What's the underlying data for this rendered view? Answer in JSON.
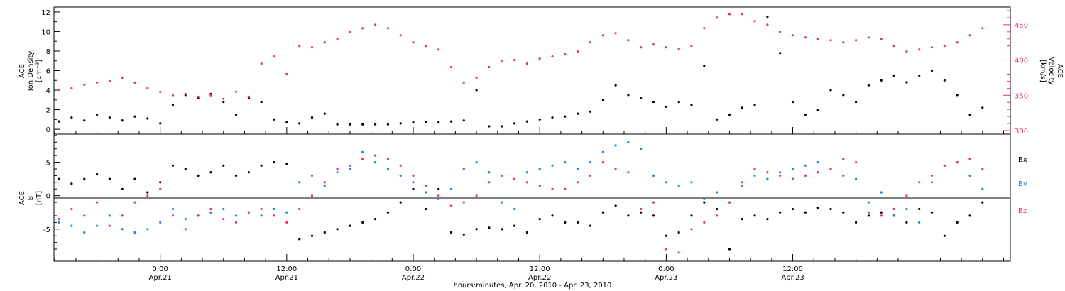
{
  "colors": {
    "black": "#000000",
    "red": "#e8336a",
    "blue": "#1f86d6"
  },
  "chart_data": [
    {
      "type": "scatter",
      "panel": "top",
      "ylabel_lines": [
        "ACE",
        "Ion Density",
        "[cm⁻³]"
      ],
      "y2label_lines": [
        "ACE",
        "Velocity",
        "[km/s]"
      ],
      "xlim": [
        -0.42,
        3.36
      ],
      "ylim": [
        -0.5,
        12.5
      ],
      "y2lim": [
        295,
        475
      ],
      "yticks": [
        "0",
        "2",
        "4",
        "6",
        "8",
        "10",
        "12"
      ],
      "y2ticks": [
        "300",
        "350",
        "400",
        "450"
      ],
      "series": [
        {
          "color": "#000000",
          "x": [
            -0.4,
            -0.35,
            -0.3,
            -0.25,
            -0.2,
            -0.15,
            -0.1,
            -0.05,
            0.0,
            0.05,
            0.1,
            0.15,
            0.2,
            0.25,
            0.3,
            0.35,
            0.4,
            0.45,
            0.5,
            0.55,
            0.6,
            0.65,
            0.7,
            0.75,
            0.8,
            0.85,
            0.9,
            0.95,
            1.0,
            1.05,
            1.1,
            1.15,
            1.2,
            1.25,
            1.3,
            1.35,
            1.4,
            1.45,
            1.5,
            1.55,
            1.6,
            1.65,
            1.7,
            1.75,
            1.8,
            1.85,
            1.9,
            1.95,
            2.0,
            2.05,
            2.1,
            2.15,
            2.2,
            2.25,
            2.3,
            2.35,
            2.4,
            2.45,
            2.5,
            2.55,
            2.6,
            2.65,
            2.7,
            2.75,
            2.8,
            2.85,
            2.9,
            2.95,
            3.0,
            3.05,
            3.1,
            3.15,
            3.2,
            3.25
          ],
          "values": [
            0.8,
            1.2,
            0.9,
            1.5,
            1.2,
            0.9,
            1.3,
            1.1,
            0.6,
            2.5,
            3.5,
            3.2,
            3.6,
            2.8,
            1.5,
            3.2,
            2.8,
            1.0,
            0.7,
            0.6,
            1.2,
            1.6,
            0.5,
            0.5,
            0.5,
            0.5,
            0.5,
            0.6,
            0.7,
            0.7,
            0.7,
            0.8,
            0.9,
            4.0,
            0.3,
            0.3,
            0.6,
            0.8,
            1.0,
            1.2,
            1.3,
            1.6,
            1.8,
            3.0,
            4.5,
            3.5,
            3.2,
            2.8,
            2.3,
            2.8,
            2.5,
            6.5,
            1.0,
            1.5,
            2.2,
            2.5,
            11.5,
            7.8,
            2.8,
            1.5,
            2.0,
            4.0,
            3.5,
            2.8,
            4.5,
            5.0,
            5.5,
            4.8,
            5.5,
            6.0,
            5.0,
            3.5,
            1.5,
            2.2
          ]
        },
        {
          "color": "#e8336a",
          "axis": "y2",
          "x": [
            -0.4,
            -0.35,
            -0.3,
            -0.25,
            -0.2,
            -0.15,
            -0.1,
            -0.05,
            0.0,
            0.05,
            0.1,
            0.15,
            0.2,
            0.25,
            0.3,
            0.35,
            0.4,
            0.45,
            0.5,
            0.55,
            0.6,
            0.65,
            0.7,
            0.75,
            0.8,
            0.85,
            0.9,
            0.95,
            1.0,
            1.05,
            1.1,
            1.15,
            1.2,
            1.25,
            1.3,
            1.35,
            1.4,
            1.45,
            1.5,
            1.55,
            1.6,
            1.65,
            1.7,
            1.75,
            1.8,
            1.85,
            1.9,
            1.95,
            2.0,
            2.05,
            2.1,
            2.15,
            2.2,
            2.25,
            2.3,
            2.35,
            2.4,
            2.45,
            2.5,
            2.55,
            2.6,
            2.65,
            2.7,
            2.75,
            2.8,
            2.85,
            2.9,
            2.95,
            3.0,
            3.05,
            3.1,
            3.15,
            3.2,
            3.25
          ],
          "values": [
            358,
            360,
            365,
            368,
            370,
            375,
            368,
            360,
            355,
            350,
            352,
            348,
            350,
            345,
            355,
            348,
            395,
            405,
            380,
            420,
            418,
            425,
            430,
            440,
            445,
            450,
            445,
            435,
            425,
            420,
            415,
            390,
            368,
            375,
            390,
            398,
            400,
            395,
            402,
            405,
            408,
            412,
            425,
            435,
            438,
            428,
            418,
            422,
            418,
            416,
            420,
            445,
            460,
            465,
            465,
            455,
            450,
            440,
            435,
            432,
            430,
            428,
            425,
            428,
            432,
            430,
            420,
            412,
            415,
            418,
            420,
            425,
            435,
            445
          ]
        }
      ]
    },
    {
      "type": "scatter",
      "panel": "bottom",
      "ylabel_lines": [
        "ACE",
        "B",
        "[nT]"
      ],
      "xlim": [
        -0.42,
        3.36
      ],
      "ylim": [
        -9.8,
        9.2
      ],
      "yticks": [
        "-5",
        "0",
        "5"
      ],
      "legend": [
        "Bx",
        "By",
        "Bz"
      ],
      "xticks": [
        {
          "x": 0.0,
          "line1": "0:00",
          "line2": "Apr.21"
        },
        {
          "x": 0.5,
          "line1": "12:00",
          "line2": "Apr.21"
        },
        {
          "x": 1.0,
          "line1": "0:00",
          "line2": "Apr.22"
        },
        {
          "x": 1.5,
          "line1": "12:00",
          "line2": "Apr.22"
        },
        {
          "x": 2.0,
          "line1": "0:00",
          "line2": "Apr.23"
        },
        {
          "x": 2.5,
          "line1": "12:00",
          "line2": "Apr.23"
        }
      ],
      "xlabel": "hours:minutes, Apr. 20, 2010 - Apr. 23, 2010",
      "series": [
        {
          "name": "Bx",
          "color": "#000000",
          "x": [
            -0.4,
            -0.35,
            -0.3,
            -0.25,
            -0.2,
            -0.15,
            -0.1,
            -0.05,
            0.0,
            0.05,
            0.1,
            0.15,
            0.2,
            0.25,
            0.3,
            0.35,
            0.4,
            0.45,
            0.5,
            0.55,
            0.6,
            0.65,
            0.7,
            0.75,
            0.8,
            0.85,
            0.9,
            0.95,
            1.0,
            1.05,
            1.1,
            1.15,
            1.2,
            1.25,
            1.3,
            1.35,
            1.4,
            1.45,
            1.5,
            1.55,
            1.6,
            1.65,
            1.7,
            1.75,
            1.8,
            1.85,
            1.9,
            1.95,
            2.0,
            2.05,
            2.1,
            2.15,
            2.2,
            2.25,
            2.3,
            2.35,
            2.4,
            2.45,
            2.5,
            2.55,
            2.6,
            2.65,
            2.7,
            2.75,
            2.8,
            2.85,
            2.9,
            2.95,
            3.0,
            3.05,
            3.1,
            3.15,
            3.2,
            3.25
          ],
          "values": [
            2.5,
            1.8,
            2.5,
            3.2,
            2.5,
            1.0,
            2.5,
            0.5,
            2.0,
            4.5,
            4.0,
            3.0,
            3.5,
            4.5,
            3.0,
            3.5,
            4.5,
            5.0,
            4.8,
            -6.5,
            -6.0,
            -5.5,
            -5.0,
            -4.5,
            -4.0,
            -3.5,
            -2.5,
            -1.0,
            1.0,
            -2.0,
            1.0,
            -5.5,
            -5.8,
            -5.0,
            -4.8,
            -5.0,
            -4.5,
            -5.5,
            -3.5,
            -3.0,
            -4.0,
            -4.0,
            -4.5,
            -2.5,
            -1.5,
            -3.0,
            -2.5,
            -3.0,
            -6.0,
            -5.5,
            -3.0,
            -1.0,
            -2.0,
            -8.0,
            -3.5,
            -3.0,
            -3.5,
            -2.5,
            -2.0,
            -2.5,
            -1.8,
            -2.0,
            -2.5,
            -4.0,
            -3.0,
            -2.5,
            -3.0,
            -4.0,
            -2.0,
            -2.5,
            -6.0,
            -4.0,
            -3.0,
            -1.0
          ]
        },
        {
          "name": "By",
          "color": "#1f86d6",
          "x": [
            -0.4,
            -0.35,
            -0.3,
            -0.25,
            -0.2,
            -0.15,
            -0.1,
            -0.05,
            0.0,
            0.05,
            0.1,
            0.15,
            0.2,
            0.25,
            0.3,
            0.35,
            0.4,
            0.45,
            0.5,
            0.55,
            0.6,
            0.65,
            0.7,
            0.75,
            0.8,
            0.85,
            0.9,
            0.95,
            1.0,
            1.05,
            1.1,
            1.15,
            1.2,
            1.25,
            1.3,
            1.35,
            1.4,
            1.45,
            1.5,
            1.55,
            1.6,
            1.65,
            1.7,
            1.75,
            1.8,
            1.85,
            1.9,
            1.95,
            2.0,
            2.05,
            2.1,
            2.15,
            2.2,
            2.25,
            2.3,
            2.35,
            2.4,
            2.45,
            2.5,
            2.55,
            2.6,
            2.65,
            2.7,
            2.75,
            2.8,
            2.85,
            2.9,
            2.95,
            3.0,
            3.05,
            3.1,
            3.15,
            3.2,
            3.25
          ],
          "values": [
            -4.0,
            -4.5,
            -5.5,
            -4.5,
            -3.0,
            -5.0,
            -5.5,
            -5.0,
            -4.0,
            -2.0,
            -3.5,
            -3.0,
            -2.5,
            -2.0,
            -3.0,
            -2.5,
            -3.0,
            -2.0,
            -2.5,
            2.0,
            3.0,
            1.5,
            3.5,
            4.0,
            6.5,
            5.0,
            4.0,
            3.0,
            2.0,
            0.5,
            -0.5,
            1.0,
            4.0,
            5.0,
            3.5,
            -1.0,
            -2.0,
            3.5,
            4.0,
            4.5,
            5.0,
            4.0,
            5.0,
            6.5,
            7.5,
            8.0,
            7.0,
            3.0,
            2.0,
            1.5,
            2.0,
            -0.5,
            0.5,
            -1.0,
            1.5,
            3.0,
            2.5,
            3.5,
            4.0,
            4.5,
            5.0,
            4.0,
            3.0,
            2.5,
            -1.0,
            0.5,
            -3.0,
            -2.0,
            -4.0,
            2.0,
            4.5,
            5.0,
            3.0,
            1.0
          ]
        },
        {
          "name": "Bz",
          "color": "#e8336a",
          "x": [
            -0.4,
            -0.35,
            -0.3,
            -0.25,
            -0.2,
            -0.15,
            -0.1,
            -0.05,
            0.0,
            0.05,
            0.1,
            0.15,
            0.2,
            0.25,
            0.3,
            0.35,
            0.4,
            0.45,
            0.5,
            0.55,
            0.6,
            0.65,
            0.7,
            0.75,
            0.8,
            0.85,
            0.9,
            0.95,
            1.0,
            1.05,
            1.1,
            1.15,
            1.2,
            1.25,
            1.3,
            1.35,
            1.4,
            1.45,
            1.5,
            1.55,
            1.6,
            1.65,
            1.7,
            1.75,
            1.8,
            1.85,
            1.9,
            1.95,
            2.0,
            2.05,
            2.1,
            2.15,
            2.2,
            2.25,
            2.3,
            2.35,
            2.4,
            2.45,
            2.5,
            2.55,
            2.6,
            2.65,
            2.7,
            2.75,
            2.8,
            2.85,
            2.9,
            2.95,
            3.0,
            3.05,
            3.1,
            3.15,
            3.2,
            3.25
          ],
          "values": [
            -3.5,
            -2.0,
            -3.0,
            -1.0,
            -4.5,
            -3.0,
            -1.0,
            0.0,
            1.0,
            -3.0,
            -5.0,
            -3.0,
            -2.0,
            -3.5,
            -4.0,
            -2.5,
            -2.0,
            -3.0,
            -4.0,
            -2.0,
            0.0,
            2.0,
            4.0,
            4.5,
            5.5,
            6.0,
            5.5,
            4.5,
            3.0,
            1.5,
            0.0,
            -1.5,
            -1.0,
            0.0,
            2.0,
            3.0,
            2.5,
            2.0,
            1.5,
            1.0,
            1.0,
            2.0,
            3.0,
            5.0,
            4.0,
            3.5,
            -2.0,
            -1.0,
            -8.0,
            -8.5,
            -5.0,
            -4.0,
            -3.0,
            -1.0,
            2.0,
            4.0,
            3.5,
            3.0,
            2.5,
            3.0,
            3.5,
            4.0,
            5.5,
            5.0,
            -2.5,
            -3.0,
            -2.0,
            0.0,
            2.0,
            3.0,
            4.5,
            5.0,
            5.5,
            4.0
          ]
        }
      ]
    }
  ]
}
